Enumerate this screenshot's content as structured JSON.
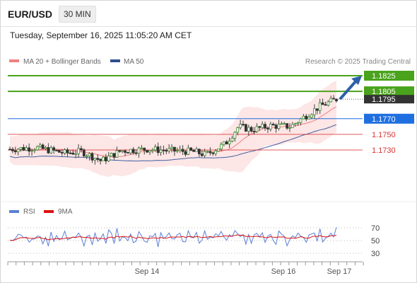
{
  "header": {
    "symbol": "EUR/USD",
    "timeframe": "30 MIN",
    "datetime": "Tuesday, September 16, 2025 11:05:20 AM CET"
  },
  "legend": {
    "ma20_label": "MA 20 + Bollinger Bands",
    "ma50_label": "MA 50",
    "credit": "Research © 2025 Trading Central",
    "ma20_color": "#f08080",
    "ma50_color": "#2f4f8f"
  },
  "rsi_legend": {
    "rsi_label": "RSI",
    "ma_label": "9MA",
    "rsi_color": "#5b7fd6",
    "ma_color": "#dd1111"
  },
  "chart_data": [
    {
      "type": "candlestick",
      "y_scale_anchor": [
        1.1825,
        1.173
      ],
      "current_price": 1.1795,
      "levels": [
        {
          "label": "1.1825",
          "value": 1.1825,
          "kind": "resistance",
          "color": "#4aa31c"
        },
        {
          "label": "1.1805",
          "value": 1.1805,
          "kind": "resistance",
          "color": "#4aa31c"
        },
        {
          "label": "1.1795",
          "value": 1.1795,
          "kind": "last-price",
          "color": "#333333"
        },
        {
          "label": "1.1770",
          "value": 1.177,
          "kind": "pivot",
          "color": "#1f6fe0"
        },
        {
          "label": "1.1750",
          "value": 1.175,
          "kind": "support",
          "color": "#d93030"
        },
        {
          "label": "1.1730",
          "value": 1.173,
          "kind": "support",
          "color": "#d93030"
        }
      ],
      "x_tick_labels": [
        "Sep 14",
        "Sep 16",
        "Sep 17"
      ],
      "trend_arrow": {
        "direction": "up",
        "from": 1.1795,
        "to": 1.1825,
        "color": "#2f5fa8"
      }
    },
    {
      "type": "line",
      "series": [
        {
          "name": "RSI"
        },
        {
          "name": "9MA"
        }
      ],
      "y_ticks": [
        70,
        50,
        30
      ],
      "latest_rsi": 71
    }
  ]
}
